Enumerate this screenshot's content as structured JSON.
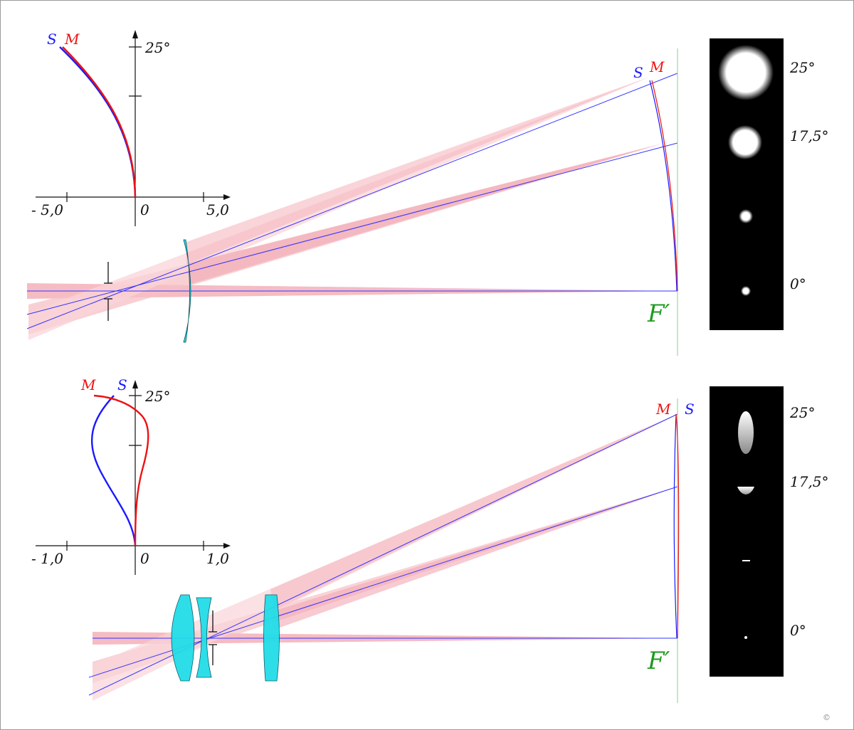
{
  "colors": {
    "sagittal": "#1a1aff",
    "meridional": "#ee1111",
    "beam": "#f0a0a8",
    "lens": "#22dde8",
    "focal_plane": "#8fcf8f",
    "focus_label": "#1f9a1f"
  },
  "top": {
    "plot": {
      "s_label": "S",
      "m_label": "M",
      "angle_label": "25°",
      "x_left": "- 5,0",
      "x_zero": "0",
      "x_right": "5,0"
    },
    "image_plane": {
      "s_label": "S",
      "m_label": "M"
    },
    "focus_label": "F′",
    "spots": {
      "labels": [
        "25°",
        "17,5°",
        "0°"
      ],
      "spot_levels": [
        25,
        17.5,
        8.75,
        0
      ]
    }
  },
  "bottom": {
    "plot": {
      "m_label": "M",
      "s_label": "S",
      "angle_label": "25°",
      "x_left": "- 1,0",
      "x_zero": "0",
      "x_right": "1,0"
    },
    "image_plane": {
      "m_label": "M",
      "s_label": "S"
    },
    "focus_label": "F′",
    "spots": {
      "labels": [
        "25°",
        "17,5°",
        "0°"
      ],
      "spot_levels": [
        25,
        17.5,
        8.75,
        0
      ]
    }
  },
  "credit": "©"
}
